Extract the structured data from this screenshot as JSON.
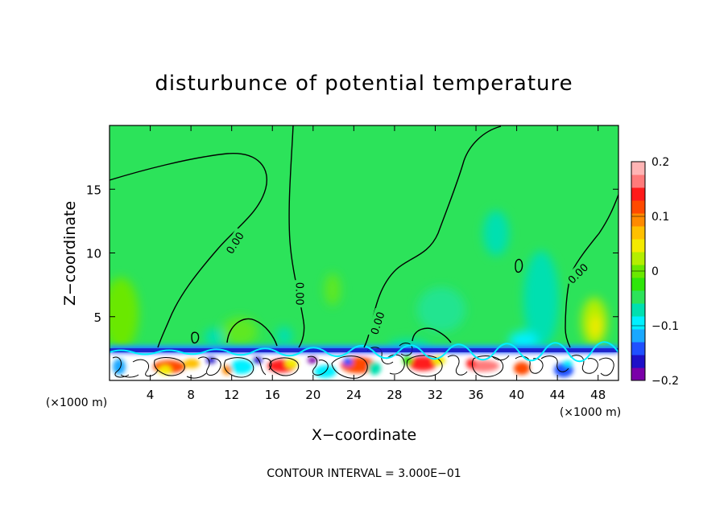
{
  "chart_data": {
    "type": "heatmap",
    "title": "disturbunce of potential temperature",
    "xlabel": "X−coordinate",
    "ylabel": "Z−coordinate",
    "x_unit": "(×1000 m)",
    "x_unit_right": "(×1000 m)",
    "footer": "CONTOUR INTERVAL = 3.000E−01",
    "xlim": [
      0,
      50
    ],
    "ylim": [
      0,
      20
    ],
    "x_ticks": [
      4,
      8,
      12,
      16,
      20,
      24,
      28,
      32,
      36,
      40,
      44,
      48
    ],
    "y_ticks": [
      5,
      10,
      15
    ],
    "colorbar": {
      "range": [
        -0.2,
        0.2
      ],
      "tick_values": [
        0.2,
        0.1,
        0,
        -0.1,
        -0.2
      ],
      "tick_labels": [
        "0.2",
        "0.1",
        "0",
        "−0.1",
        "−0.2"
      ],
      "colors": [
        "#7a00a8",
        "#1e10c8",
        "#1f50ff",
        "#1aa8ff",
        "#00f0ff",
        "#00e0b0",
        "#2ce35a",
        "#2ee60a",
        "#6ae800",
        "#b4ee00",
        "#f4ea00",
        "#ffc000",
        "#ff8a00",
        "#ff4a00",
        "#ff1a1a",
        "#ff7a7a",
        "#ffb4b4"
      ]
    },
    "background_value": 0.0,
    "contour_labels": [
      {
        "text": "0.00",
        "x": 12.3,
        "z": 10.8,
        "angle": -58
      },
      {
        "text": "0.00",
        "x": 18.7,
        "z": 6.8,
        "angle": 90
      },
      {
        "text": "0.00",
        "x": 26.3,
        "z": 4.5,
        "angle": -72
      },
      {
        "text": "0.00",
        "x": 46.0,
        "z": 8.4,
        "angle": -45
      }
    ]
  }
}
